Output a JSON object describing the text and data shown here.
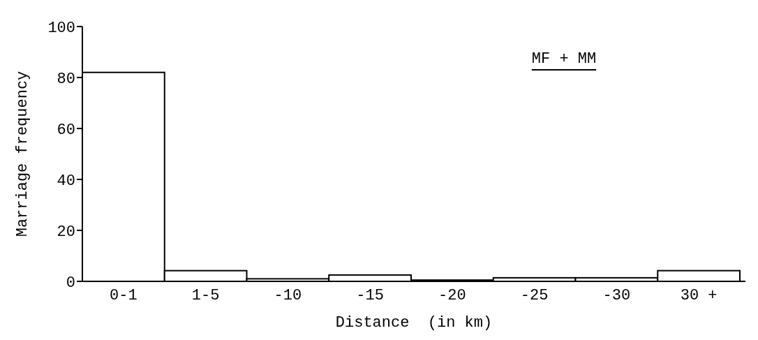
{
  "chart_data": {
    "type": "bar",
    "xlabel": "Distance  (in km)",
    "ylabel": "Marriage frequency",
    "categories": [
      "0-1",
      "1-5",
      "-10",
      "-15",
      "-20",
      "-25",
      "-30",
      "30 +"
    ],
    "values": [
      82,
      4.2,
      1,
      2.5,
      0.5,
      1.4,
      1.4,
      4.2
    ],
    "color": "#ffffff",
    "ylim": [
      0,
      100
    ],
    "yticks": [
      0,
      20,
      40,
      60,
      80,
      100
    ],
    "annotations": [
      "MF + MM"
    ]
  }
}
